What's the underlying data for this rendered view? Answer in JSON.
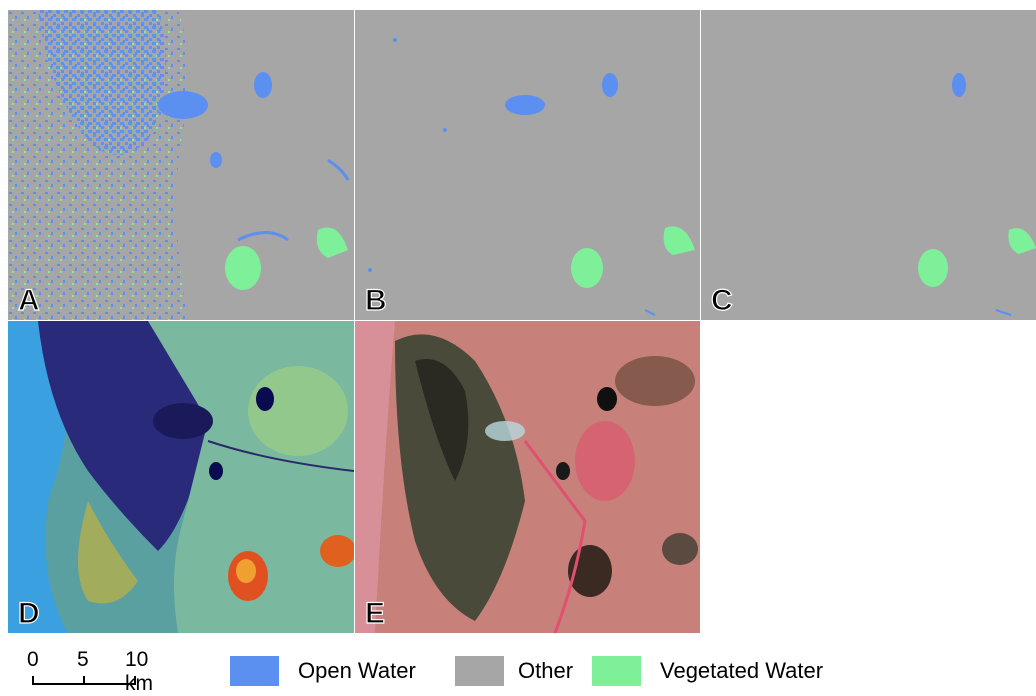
{
  "panels": [
    {
      "id": "A",
      "label": "A",
      "type": "classification"
    },
    {
      "id": "B",
      "label": "B",
      "type": "classification"
    },
    {
      "id": "C",
      "label": "C",
      "type": "classification"
    },
    {
      "id": "D",
      "label": "D",
      "type": "false-color"
    },
    {
      "id": "E",
      "label": "E",
      "type": "false-color"
    }
  ],
  "scale_bar": {
    "ticks": [
      "0",
      "5",
      "10 km"
    ]
  },
  "legend": [
    {
      "label": "Open Water",
      "color": "#5b8ff0"
    },
    {
      "label": "Other",
      "color": "#a6a6a6"
    },
    {
      "label": "Vegetated Water",
      "color": "#7ff09a"
    }
  ]
}
